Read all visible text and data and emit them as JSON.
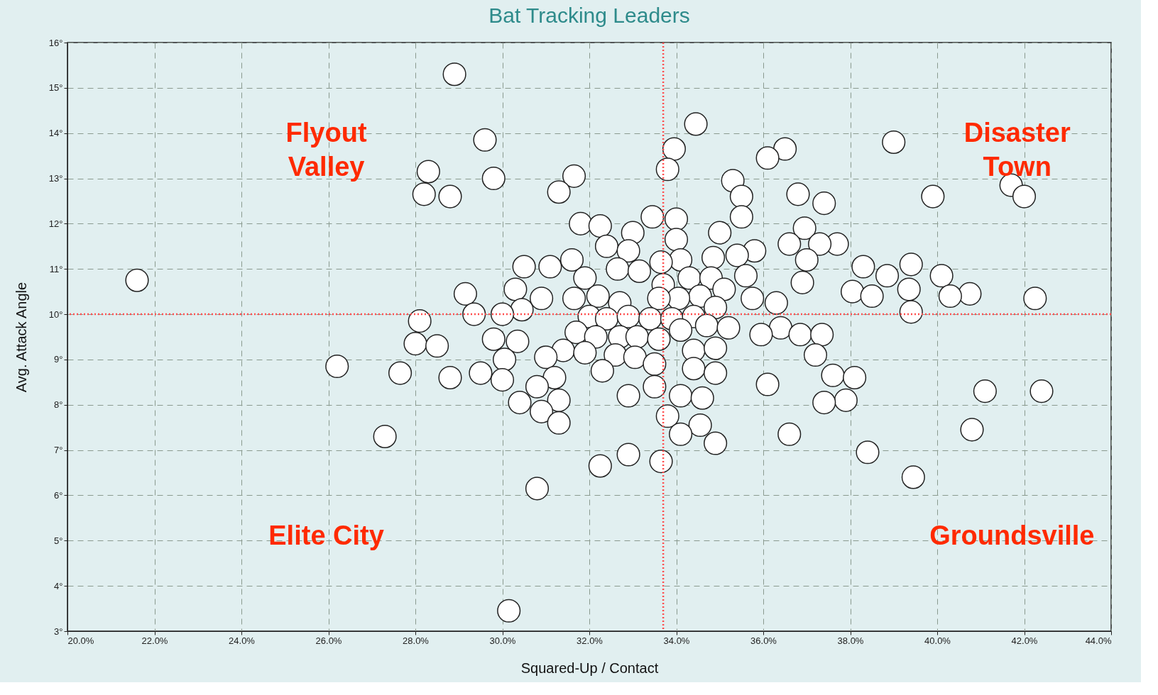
{
  "chart_data": {
    "type": "scatter",
    "title": "Bat Tracking Leaders",
    "xlabel": "Squared-Up / Contact",
    "ylabel": "Avg. Attack Angle",
    "xlim": [
      20,
      44
    ],
    "ylim": [
      3,
      16
    ],
    "xticks": [
      {
        "value": 20,
        "label": "20.0%"
      },
      {
        "value": 22,
        "label": "22.0%"
      },
      {
        "value": 24,
        "label": "24.0%"
      },
      {
        "value": 26,
        "label": "26.0%"
      },
      {
        "value": 28,
        "label": "28.0%"
      },
      {
        "value": 30,
        "label": "30.0%"
      },
      {
        "value": 32,
        "label": "32.0%"
      },
      {
        "value": 34,
        "label": "34.0%"
      },
      {
        "value": 36,
        "label": "36.0%"
      },
      {
        "value": 38,
        "label": "38.0%"
      },
      {
        "value": 40,
        "label": "40.0%"
      },
      {
        "value": 42,
        "label": "42.0%"
      },
      {
        "value": 44,
        "label": "44.0%"
      }
    ],
    "yticks": [
      {
        "value": 3,
        "label": "3°"
      },
      {
        "value": 4,
        "label": "4°"
      },
      {
        "value": 5,
        "label": "5°"
      },
      {
        "value": 6,
        "label": "6°"
      },
      {
        "value": 7,
        "label": "7°"
      },
      {
        "value": 8,
        "label": "8°"
      },
      {
        "value": 9,
        "label": "9°"
      },
      {
        "value": 10,
        "label": "10°"
      },
      {
        "value": 11,
        "label": "11°"
      },
      {
        "value": 12,
        "label": "12°"
      },
      {
        "value": 13,
        "label": "13°"
      },
      {
        "value": 14,
        "label": "14°"
      },
      {
        "value": 15,
        "label": "15°"
      },
      {
        "value": 16,
        "label": "16°"
      }
    ],
    "grid": true,
    "marker": "circle",
    "ref_lines": [
      {
        "axis": "x",
        "value": 33.7,
        "color": "#ff4d4d",
        "line_style": "dotted"
      },
      {
        "axis": "y",
        "value": 10,
        "color": "#ff4d4d",
        "line_style": "dotted"
      }
    ],
    "annotations": [
      "Flyout\nValley",
      "Disaster\nTown",
      "Elite City",
      "Groundsville"
    ],
    "series": [
      {
        "color": "#ffffff",
        "x": [
          28.9,
          34.45,
          29.6,
          39.0,
          33.95,
          36.5,
          36.1,
          33.8,
          28.3,
          29.8,
          31.65,
          35.3,
          41.7,
          31.3,
          28.2,
          28.8,
          35.5,
          36.8,
          39.9,
          42.0,
          37.4,
          35.5,
          31.8,
          33.45,
          34.0,
          32.25,
          33.0,
          36.95,
          35.0,
          34.0,
          36.6,
          37.7,
          37.3,
          32.4,
          35.8,
          32.9,
          35.4,
          34.85,
          37.0,
          31.6,
          34.1,
          30.5,
          31.1,
          38.3,
          39.4,
          32.65,
          33.15,
          33.65,
          35.6,
          38.85,
          40.1,
          21.6,
          31.9,
          34.3,
          34.8,
          36.9,
          33.7,
          39.35,
          30.3,
          35.1,
          38.05,
          29.15,
          40.75,
          40.3,
          38.5,
          32.2,
          34.55,
          34.05,
          35.75,
          31.65,
          42.25,
          30.9,
          33.6,
          32.7,
          36.3,
          34.9,
          30.45,
          39.4,
          29.35,
          30.0,
          32.0,
          32.4,
          32.9,
          33.4,
          33.9,
          34.4,
          28.1,
          34.7,
          34.1,
          35.2,
          36.4,
          31.7,
          35.95,
          36.85,
          37.35,
          29.8,
          30.35,
          32.15,
          32.7,
          33.1,
          33.6,
          28.0,
          28.5,
          31.4,
          34.4,
          34.9,
          31.9,
          32.6,
          33.05,
          37.2,
          30.05,
          31.0,
          33.5,
          26.2,
          32.3,
          34.4,
          27.65,
          29.5,
          34.9,
          28.8,
          37.6,
          38.1,
          31.2,
          30.0,
          36.1,
          30.8,
          33.5,
          41.1,
          42.4,
          32.9,
          34.1,
          34.6,
          30.4,
          31.3,
          37.9,
          37.4,
          30.9,
          33.8,
          31.3,
          34.55,
          40.8,
          36.6,
          34.1,
          27.3,
          34.9,
          38.4,
          32.9,
          33.65,
          32.25,
          39.45,
          30.8,
          30.15
        ],
        "values": [
          15.3,
          14.2,
          13.85,
          13.8,
          13.65,
          13.65,
          13.45,
          13.2,
          13.15,
          13.0,
          13.05,
          12.95,
          12.85,
          12.7,
          12.65,
          12.6,
          12.6,
          12.65,
          12.6,
          12.6,
          12.45,
          12.15,
          12.0,
          12.15,
          12.1,
          11.95,
          11.8,
          11.9,
          11.8,
          11.65,
          11.55,
          11.55,
          11.55,
          11.5,
          11.4,
          11.4,
          11.3,
          11.25,
          11.2,
          11.2,
          11.2,
          11.05,
          11.05,
          11.05,
          11.1,
          11.0,
          10.95,
          11.15,
          10.85,
          10.85,
          10.85,
          10.75,
          10.8,
          10.8,
          10.8,
          10.7,
          10.65,
          10.55,
          10.55,
          10.55,
          10.5,
          10.45,
          10.45,
          10.4,
          10.4,
          10.4,
          10.4,
          10.35,
          10.35,
          10.35,
          10.35,
          10.35,
          10.35,
          10.25,
          10.25,
          10.15,
          10.1,
          10.05,
          10.0,
          10.0,
          9.95,
          9.9,
          9.95,
          9.9,
          9.9,
          9.95,
          9.85,
          9.75,
          9.65,
          9.7,
          9.7,
          9.6,
          9.55,
          9.55,
          9.55,
          9.45,
          9.4,
          9.5,
          9.5,
          9.5,
          9.45,
          9.35,
          9.3,
          9.2,
          9.2,
          9.25,
          9.15,
          9.1,
          9.05,
          9.1,
          9.0,
          9.05,
          8.9,
          8.85,
          8.75,
          8.8,
          8.7,
          8.7,
          8.7,
          8.6,
          8.65,
          8.6,
          8.6,
          8.55,
          8.45,
          8.4,
          8.4,
          8.3,
          8.3,
          8.2,
          8.2,
          8.15,
          8.05,
          8.1,
          8.1,
          8.05,
          7.85,
          7.75,
          7.6,
          7.55,
          7.45,
          7.35,
          7.35,
          7.3,
          7.15,
          6.95,
          6.9,
          6.75,
          6.65,
          6.4,
          6.15,
          3.45
        ]
      }
    ]
  }
}
